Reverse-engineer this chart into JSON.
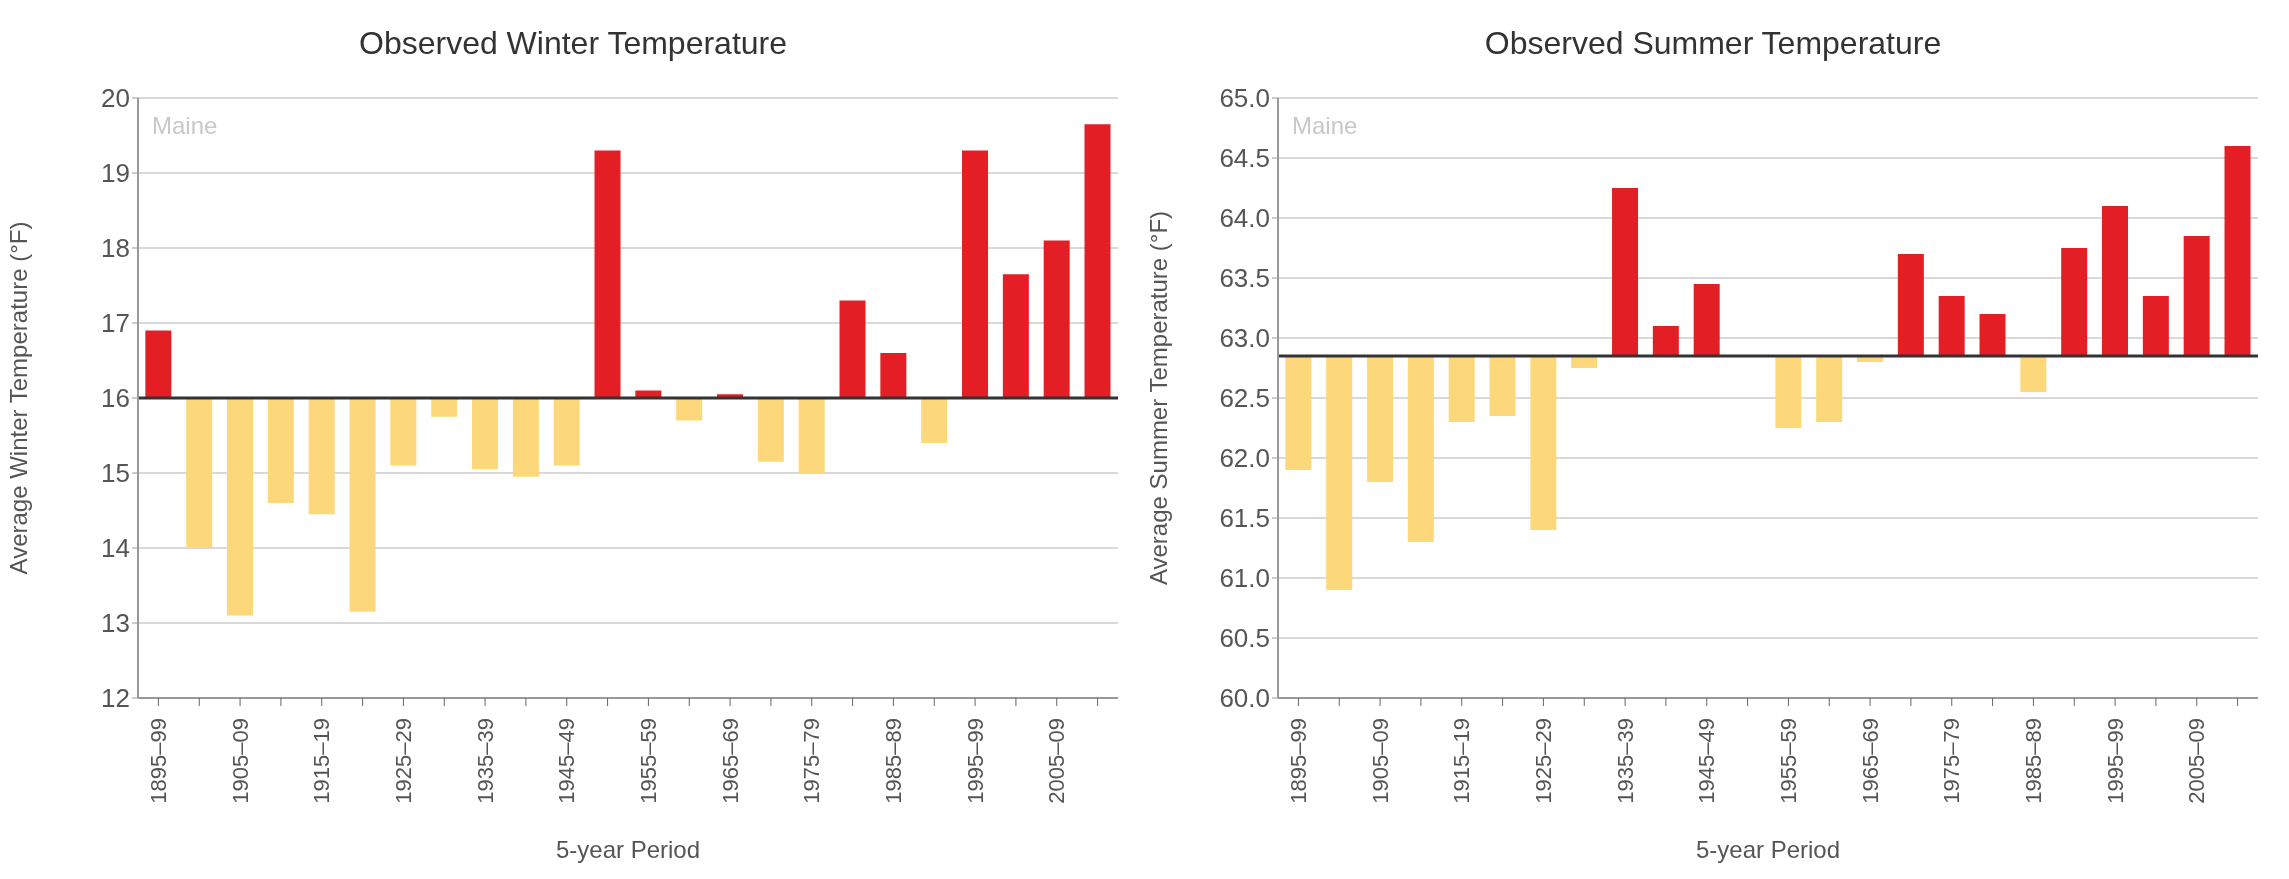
{
  "chart_data": [
    {
      "type": "bar",
      "title": "Observed Winter Temperature",
      "xlabel": "5-year Period",
      "ylabel": "Average Winter Temperature (°F)",
      "annotations": [
        "Maine"
      ],
      "categories": [
        "1895–99",
        null,
        "1905–09",
        null,
        "1915–19",
        null,
        "1925–29",
        null,
        "1935–39",
        null,
        "1945–49",
        null,
        "1955–59",
        null,
        "1965–69",
        null,
        "1975–79",
        null,
        "1985–89",
        null,
        "1995–99",
        null,
        "2005–09",
        null
      ],
      "base": [
        16,
        16,
        16,
        16,
        16,
        16,
        16,
        16,
        16,
        16,
        16,
        16,
        16,
        16,
        16,
        16,
        16,
        16,
        16,
        16,
        16,
        16,
        16,
        16
      ],
      "values": [
        0.9,
        -2.0,
        -2.9,
        -1.4,
        -1.55,
        -2.85,
        -0.9,
        -0.25,
        -0.95,
        -1.05,
        -0.9,
        3.3,
        0.1,
        -0.3,
        0.05,
        -0.85,
        -1.0,
        1.3,
        0.6,
        -0.6,
        3.3,
        1.65,
        2.1,
        3.65
      ],
      "colors": [
        "#e31e24",
        "#fdd87a",
        "#fdd87a",
        "#fdd87a",
        "#fdd87a",
        "#fdd87a",
        "#fdd87a",
        "#fdd87a",
        "#fdd87a",
        "#fdd87a",
        "#fdd87a",
        "#e31e24",
        "#e31e24",
        "#fdd87a",
        "#e31e24",
        "#fdd87a",
        "#fdd87a",
        "#e31e24",
        "#e31e24",
        "#fdd87a",
        "#e31e24",
        "#e31e24",
        "#e31e24",
        "#e31e24"
      ],
      "ylim": [
        12,
        20
      ],
      "yticks": [
        12,
        13,
        14,
        15,
        16,
        17,
        18,
        19,
        20
      ],
      "grid": "y",
      "ref_lines": [
        {
          "axis": "y",
          "value": 16,
          "color": "#333333"
        }
      ]
    },
    {
      "type": "bar",
      "title": "Observed Summer Temperature",
      "xlabel": "5-year Period",
      "ylabel": "Average Summer Temperature (°F)",
      "annotations": [
        "Maine"
      ],
      "categories": [
        "1895–99",
        null,
        "1905–09",
        null,
        "1915–19",
        null,
        "1925–29",
        null,
        "1935–39",
        null,
        "1945–49",
        null,
        "1955–59",
        null,
        "1965–69",
        null,
        "1975–79",
        null,
        "1985–89",
        null,
        "1995–99",
        null,
        "2005–09",
        null
      ],
      "base": [
        62.85,
        62.85,
        62.85,
        62.85,
        62.85,
        62.85,
        62.85,
        62.85,
        62.85,
        62.85,
        62.85,
        null,
        62.85,
        62.85,
        62.85,
        62.85,
        62.85,
        62.85,
        62.85,
        62.85,
        62.85,
        62.85,
        62.85,
        62.85
      ],
      "values": [
        -0.95,
        -1.95,
        -1.05,
        -1.55,
        -0.55,
        -0.5,
        -1.45,
        -0.1,
        1.4,
        0.25,
        0.6,
        null,
        -0.6,
        -0.55,
        -0.05,
        0.85,
        0.5,
        0.35,
        -0.3,
        0.9,
        1.25,
        0.5,
        1.0,
        1.75
      ],
      "colors": [
        "#fdd87a",
        "#fdd87a",
        "#fdd87a",
        "#fdd87a",
        "#fdd87a",
        "#fdd87a",
        "#fdd87a",
        "#fdd87a",
        "#e31e24",
        "#e31e24",
        "#e31e24",
        "#e31e24",
        "#fdd87a",
        "#fdd87a",
        "#fdd87a",
        "#e31e24",
        "#e31e24",
        "#e31e24",
        "#fdd87a",
        "#e31e24",
        "#e31e24",
        "#e31e24",
        "#e31e24",
        "#e31e24"
      ],
      "ylim": [
        60,
        65
      ],
      "yticks": [
        {
          "value": 60,
          "label": "60.0"
        },
        {
          "value": 60.5,
          "label": "60.5"
        },
        {
          "value": 61,
          "label": "61.0"
        },
        {
          "value": 61.5,
          "label": "61.5"
        },
        {
          "value": 62,
          "label": "62.0"
        },
        {
          "value": 62.5,
          "label": "62.5"
        },
        {
          "value": 63,
          "label": "63.0"
        },
        {
          "value": 63.5,
          "label": "63.5"
        },
        {
          "value": 64,
          "label": "64.0"
        },
        {
          "value": 64.5,
          "label": "64.5"
        },
        {
          "value": 65,
          "label": "65.0"
        }
      ],
      "grid": "y",
      "ref_lines": [
        {
          "axis": "y",
          "value": 62.85,
          "color": "#333333"
        }
      ]
    }
  ]
}
